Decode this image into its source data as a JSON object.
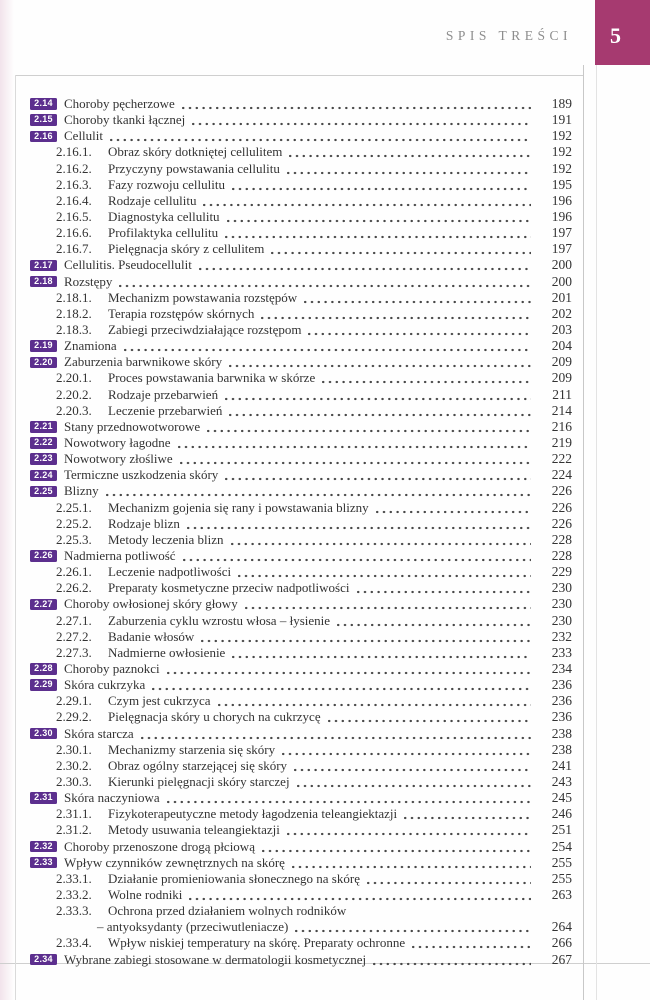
{
  "header": {
    "title": "SPIS TREŚCI",
    "page_number": "5"
  },
  "colors": {
    "badge_purple": "#5c2f8e",
    "page_tab_magenta": "#a63a70",
    "text": "#333333",
    "rule_gray": "#cfcfcf",
    "header_text_gray": "#8d8d8d"
  },
  "toc": {
    "entries": [
      {
        "type": "section",
        "num": "2.14",
        "title": "Choroby pęcherzowe",
        "page": "189"
      },
      {
        "type": "section",
        "num": "2.15",
        "title": "Choroby tkanki łącznej",
        "page": "191"
      },
      {
        "type": "section",
        "num": "2.16",
        "title": "Cellulit",
        "page": "192"
      },
      {
        "type": "sub",
        "num": "2.16.1.",
        "title": "Obraz skóry dotkniętej cellulitem",
        "page": "192"
      },
      {
        "type": "sub",
        "num": "2.16.2.",
        "title": "Przyczyny powstawania cellulitu",
        "page": "192"
      },
      {
        "type": "sub",
        "num": "2.16.3.",
        "title": "Fazy rozwoju cellulitu",
        "page": "195"
      },
      {
        "type": "sub",
        "num": "2.16.4.",
        "title": "Rodzaje cellulitu",
        "page": "196"
      },
      {
        "type": "sub",
        "num": "2.16.5.",
        "title": "Diagnostyka cellulitu",
        "page": "196"
      },
      {
        "type": "sub",
        "num": "2.16.6.",
        "title": "Profilaktyka cellulitu",
        "page": "197"
      },
      {
        "type": "sub",
        "num": "2.16.7.",
        "title": "Pielęgnacja skóry z cellulitem",
        "page": "197"
      },
      {
        "type": "section",
        "num": "2.17",
        "title": "Cellulitis. Pseudocellulit",
        "page": "200"
      },
      {
        "type": "section",
        "num": "2.18",
        "title": "Rozstępy",
        "page": "200"
      },
      {
        "type": "sub",
        "num": "2.18.1.",
        "title": "Mechanizm powstawania rozstępów",
        "page": "201"
      },
      {
        "type": "sub",
        "num": "2.18.2.",
        "title": "Terapia rozstępów skórnych",
        "page": "202"
      },
      {
        "type": "sub",
        "num": "2.18.3.",
        "title": "Zabiegi przeciwdziałające rozstępom",
        "page": "203"
      },
      {
        "type": "section",
        "num": "2.19",
        "title": "Znamiona",
        "page": "204"
      },
      {
        "type": "section",
        "num": "2.20",
        "title": "Zaburzenia barwnikowe skóry",
        "page": "209"
      },
      {
        "type": "sub",
        "num": "2.20.1.",
        "title": "Proces powstawania barwnika w skórze",
        "page": "209"
      },
      {
        "type": "sub",
        "num": "2.20.2.",
        "title": "Rodzaje przebarwień",
        "page": "211"
      },
      {
        "type": "sub",
        "num": "2.20.3.",
        "title": "Leczenie przebarwień",
        "page": "214"
      },
      {
        "type": "section",
        "num": "2.21",
        "title": "Stany przednowotworowe",
        "page": "216"
      },
      {
        "type": "section",
        "num": "2.22",
        "title": "Nowotwory łagodne",
        "page": "219"
      },
      {
        "type": "section",
        "num": "2.23",
        "title": "Nowotwory złośliwe",
        "page": "222"
      },
      {
        "type": "section",
        "num": "2.24",
        "title": "Termiczne uszkodzenia skóry",
        "page": "224"
      },
      {
        "type": "section",
        "num": "2.25",
        "title": "Blizny",
        "page": "226"
      },
      {
        "type": "sub",
        "num": "2.25.1.",
        "title": "Mechanizm gojenia się rany i powstawania blizny",
        "page": "226"
      },
      {
        "type": "sub",
        "num": "2.25.2.",
        "title": "Rodzaje blizn",
        "page": "226"
      },
      {
        "type": "sub",
        "num": "2.25.3.",
        "title": "Metody leczenia blizn",
        "page": "228"
      },
      {
        "type": "section",
        "num": "2.26",
        "title": "Nadmierna potliwość",
        "page": "228"
      },
      {
        "type": "sub",
        "num": "2.26.1.",
        "title": "Leczenie nadpotliwości",
        "page": "229"
      },
      {
        "type": "sub",
        "num": "2.26.2.",
        "title": "Preparaty kosmetyczne przeciw nadpotliwości",
        "page": "230"
      },
      {
        "type": "section",
        "num": "2.27",
        "title": "Choroby owłosionej skóry głowy",
        "page": "230"
      },
      {
        "type": "sub",
        "num": "2.27.1.",
        "title": "Zaburzenia cyklu wzrostu włosa – łysienie",
        "page": "230"
      },
      {
        "type": "sub",
        "num": "2.27.2.",
        "title": "Badanie włosów",
        "page": "232"
      },
      {
        "type": "sub",
        "num": "2.27.3.",
        "title": "Nadmierne owłosienie",
        "page": "233"
      },
      {
        "type": "section",
        "num": "2.28",
        "title": "Choroby paznokci",
        "page": "234"
      },
      {
        "type": "section",
        "num": "2.29",
        "title": "Skóra cukrzyka",
        "page": "236"
      },
      {
        "type": "sub",
        "num": "2.29.1.",
        "title": "Czym jest cukrzyca",
        "page": "236"
      },
      {
        "type": "sub",
        "num": "2.29.2.",
        "title": "Pielęgnacja skóry u chorych na cukrzycę",
        "page": "236"
      },
      {
        "type": "section",
        "num": "2.30",
        "title": "Skóra starcza",
        "page": "238"
      },
      {
        "type": "sub",
        "num": "2.30.1.",
        "title": "Mechanizmy starzenia się skóry",
        "page": "238"
      },
      {
        "type": "sub",
        "num": "2.30.2.",
        "title": "Obraz ogólny starzejącej się skóry",
        "page": "241"
      },
      {
        "type": "sub",
        "num": "2.30.3.",
        "title": "Kierunki pielęgnacji skóry starczej",
        "page": "243"
      },
      {
        "type": "section",
        "num": "2.31",
        "title": "Skóra naczyniowa",
        "page": "245"
      },
      {
        "type": "sub",
        "num": "2.31.1.",
        "title": "Fizykoterapeutyczne metody łagodzenia teleangiektazji",
        "page": "246"
      },
      {
        "type": "sub",
        "num": "2.31.2.",
        "title": "Metody usuwania teleangiektazji",
        "page": "251"
      },
      {
        "type": "section",
        "num": "2.32",
        "title": "Choroby przenoszone drogą płciową",
        "page": "254"
      },
      {
        "type": "section",
        "num": "2.33",
        "title": "Wpływ czynników zewnętrznych na skórę",
        "page": "255"
      },
      {
        "type": "sub",
        "num": "2.33.1.",
        "title": "Działanie promieniowania słonecznego na skórę",
        "page": "255"
      },
      {
        "type": "sub",
        "num": "2.33.2.",
        "title": "Wolne rodniki",
        "page": "263"
      },
      {
        "type": "sub",
        "num": "2.33.3.",
        "title": "Ochrona przed działaniem wolnych rodników",
        "page": ""
      },
      {
        "type": "cont",
        "num": "",
        "title": "– antyoksydanty (przeciwutleniacze)",
        "page": "264"
      },
      {
        "type": "sub",
        "num": "2.33.4.",
        "title": "Wpływ niskiej temperatury na skórę. Preparaty ochronne",
        "page": "266"
      },
      {
        "type": "section",
        "num": "2.34",
        "title": "Wybrane zabiegi stosowane w dermatologii kosmetycznej",
        "page": "267"
      }
    ]
  }
}
